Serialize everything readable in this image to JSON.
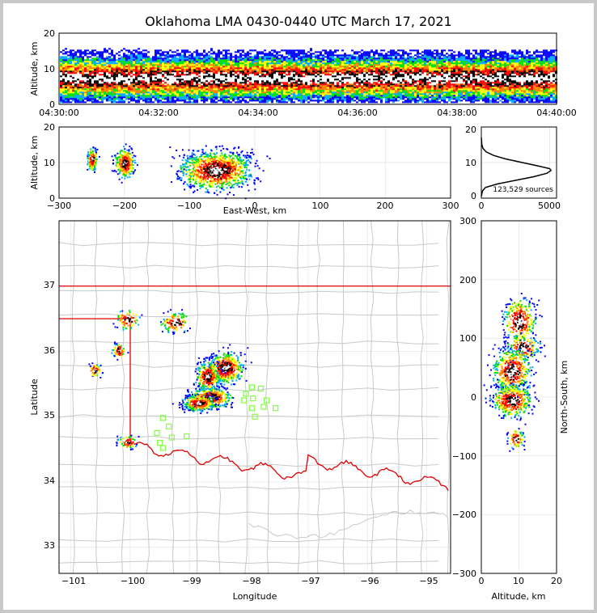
{
  "title": "Oklahoma LMA 0430-0440 UTC March 17, 2021",
  "chart_data": [
    {
      "type": "heatmap",
      "panel": "time-height",
      "ylabel": "Altitude, km",
      "ylim": [
        0,
        20
      ],
      "yticks": [
        "0",
        "10",
        "20"
      ],
      "xticks": [
        "04:30:00",
        "04:32:00",
        "04:34:00",
        "04:36:00",
        "04:38:00",
        "04:40:00"
      ],
      "source_altitude_band_km": [
        2,
        14
      ],
      "peak_altitude_km": 7.5
    },
    {
      "type": "heatmap",
      "panel": "east-west vs altitude",
      "xlabel": "East-West, km",
      "ylabel": "Altitude, km",
      "xlim": [
        -300,
        300
      ],
      "ylim": [
        0,
        20
      ],
      "xticks": [
        "−300",
        "−200",
        "−100",
        "0",
        "100",
        "200",
        "300"
      ],
      "yticks": [
        "0",
        "10",
        "20"
      ],
      "clusters_km": [
        {
          "x": -250,
          "alt": 11
        },
        {
          "x": -200,
          "alt": 10
        },
        {
          "x": -60,
          "alt": 8
        }
      ]
    },
    {
      "type": "line",
      "panel": "altitude histogram",
      "xlim": [
        0,
        5500
      ],
      "ylim": [
        0,
        20
      ],
      "xticks": [
        "0",
        "5000"
      ],
      "yticks": [
        "0",
        "10",
        "20"
      ],
      "annotation": "123,529 sources",
      "x": [
        0,
        80,
        300,
        1200,
        2500,
        3800,
        4800,
        5100,
        5000,
        4200,
        3000,
        1800,
        900,
        350,
        120,
        40,
        0
      ],
      "y": [
        0.5,
        2,
        3,
        4,
        5,
        6,
        7,
        7.8,
        8.3,
        9,
        10,
        11,
        12,
        13,
        14,
        15,
        17
      ]
    },
    {
      "type": "heatmap",
      "panel": "plan view map",
      "xlabel": "Longitude",
      "ylabel": "Latitude",
      "xlim": [
        -101.2,
        -94.6
      ],
      "ylim": [
        32.6,
        38
      ],
      "xticks": [
        "−101",
        "−100",
        "−99",
        "−98",
        "−97",
        "−96",
        "−95"
      ],
      "yticks": [
        "33",
        "34",
        "35",
        "36",
        "37"
      ],
      "clusters_deg": [
        {
          "lon": -100.6,
          "lat": 35.72
        },
        {
          "lon": -100.2,
          "lat": 36.02
        },
        {
          "lon": -100.05,
          "lat": 36.5
        },
        {
          "lon": -99.25,
          "lat": 36.45
        },
        {
          "lon": -100.05,
          "lat": 34.62
        },
        {
          "lon": -98.4,
          "lat": 35.75
        },
        {
          "lon": -98.7,
          "lat": 35.62
        },
        {
          "lon": -98.65,
          "lat": 35.3
        },
        {
          "lon": -98.85,
          "lat": 35.22
        }
      ],
      "stations_deg": [
        {
          "lon": -97.95,
          "lat": 35.45
        },
        {
          "lon": -97.8,
          "lat": 35.43
        },
        {
          "lon": -98.05,
          "lat": 35.35
        },
        {
          "lon": -97.93,
          "lat": 35.28
        },
        {
          "lon": -98.08,
          "lat": 35.25
        },
        {
          "lon": -97.7,
          "lat": 35.25
        },
        {
          "lon": -97.95,
          "lat": 35.13
        },
        {
          "lon": -97.75,
          "lat": 35.15
        },
        {
          "lon": -97.55,
          "lat": 35.13
        },
        {
          "lon": -97.9,
          "lat": 35.0
        },
        {
          "lon": -99.45,
          "lat": 34.98
        },
        {
          "lon": -99.35,
          "lat": 34.85
        },
        {
          "lon": -99.55,
          "lat": 34.75
        },
        {
          "lon": -99.3,
          "lat": 34.68
        },
        {
          "lon": -99.05,
          "lat": 34.7
        },
        {
          "lon": -99.5,
          "lat": 34.6
        },
        {
          "lon": -99.45,
          "lat": 34.52
        }
      ]
    },
    {
      "type": "heatmap",
      "panel": "altitude vs north-south",
      "xlabel": "Altitude, km",
      "ylabel": "North-South, km",
      "xlim": [
        0,
        20
      ],
      "ylim": [
        -300,
        300
      ],
      "xticks": [
        "0",
        "10",
        "20"
      ],
      "yticks": [
        "300",
        "200",
        "100",
        "0",
        "−100",
        "−200",
        "−300"
      ],
      "clusters_km": [
        {
          "alt": 10,
          "y": 130
        },
        {
          "alt": 11,
          "y": 85
        },
        {
          "alt": 8,
          "y": 45
        },
        {
          "alt": 8,
          "y": -5
        },
        {
          "alt": 9,
          "y": -70
        }
      ]
    }
  ],
  "colors": {
    "state_border": "#e00000",
    "county_lines": "#c8c8c8",
    "stations": "#80ff40",
    "source_scale": [
      "#0000ff",
      "#00aaff",
      "#00e000",
      "#ffff00",
      "#ff8000",
      "#ff0000",
      "#000000",
      "#ffffff"
    ]
  }
}
